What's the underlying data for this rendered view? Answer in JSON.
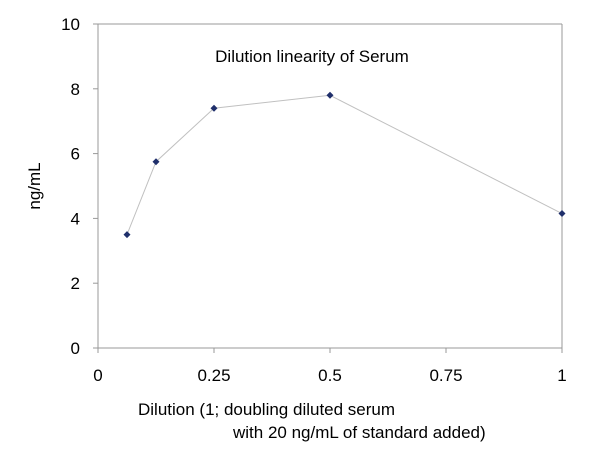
{
  "chart_data": {
    "type": "line",
    "title": "Dilution linearity of Serum",
    "xlabel_line1": "Dilution (1; doubling diluted serum",
    "xlabel_line2": "with 20 ng/mL of standard added)",
    "ylabel": "ng/mL",
    "xlim": [
      0,
      1
    ],
    "ylim": [
      0,
      10
    ],
    "x_ticks": [
      {
        "value": 0,
        "label": "0"
      },
      {
        "value": 0.25,
        "label": "0.25"
      },
      {
        "value": 0.5,
        "label": "0.5"
      },
      {
        "value": 0.75,
        "label": "0.75"
      },
      {
        "value": 1,
        "label": "1"
      }
    ],
    "y_ticks": [
      {
        "value": 0,
        "label": "0"
      },
      {
        "value": 2,
        "label": "2"
      },
      {
        "value": 4,
        "label": "4"
      },
      {
        "value": 6,
        "label": "6"
      },
      {
        "value": 8,
        "label": "8"
      },
      {
        "value": 10,
        "label": "10"
      }
    ],
    "grid": false,
    "series": [
      {
        "x": [
          0.0625,
          0.125,
          0.25,
          0.5,
          1
        ],
        "y": [
          3.5,
          5.75,
          7.4,
          7.8,
          4.15
        ],
        "line_color": "#c0c0c0",
        "marker_color": "#1f2f6b",
        "marker": "diamond"
      }
    ]
  }
}
